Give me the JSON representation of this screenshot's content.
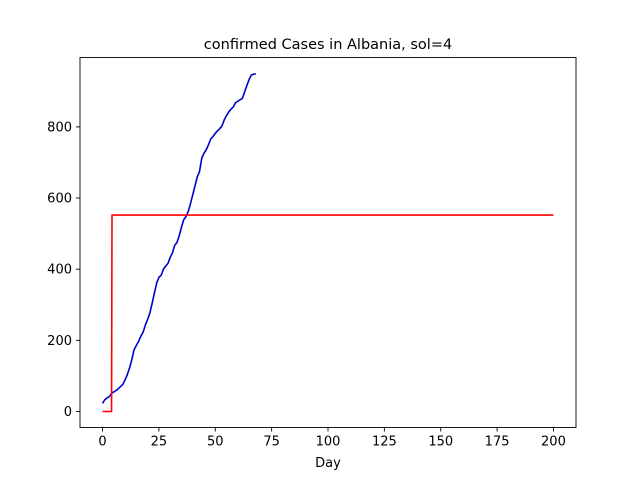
{
  "chart_data": {
    "type": "line",
    "title": "confirmed Cases in Albania, sol=4",
    "xlabel": "Day",
    "ylabel": "",
    "xlim": [
      -10,
      210
    ],
    "ylim": [
      -45,
      995
    ],
    "xticks": [
      0,
      25,
      50,
      75,
      100,
      125,
      150,
      175,
      200
    ],
    "yticks": [
      0,
      200,
      400,
      600,
      800
    ],
    "grid": false,
    "series": [
      {
        "color": "#0000cc",
        "x": [
          0,
          1,
          2,
          3,
          4,
          5,
          6,
          7,
          8,
          9,
          10,
          11,
          12,
          13,
          14,
          15,
          16,
          17,
          18,
          19,
          20,
          21,
          22,
          23,
          24,
          25,
          26,
          27,
          28,
          29,
          30,
          31,
          32,
          33,
          34,
          35,
          36,
          37,
          38,
          39,
          40,
          41,
          42,
          43,
          44,
          45,
          46,
          47,
          48,
          49,
          50,
          51,
          52,
          53,
          54,
          55,
          56,
          57,
          58,
          59,
          60,
          61,
          62,
          63,
          64,
          65,
          66,
          67,
          68
        ],
        "y": [
          23,
          33,
          38,
          42,
          51,
          55,
          59,
          64,
          70,
          76,
          89,
          104,
          123,
          146,
          174,
          186,
          197,
          212,
          223,
          243,
          259,
          277,
          304,
          333,
          361,
          377,
          383,
          400,
          409,
          416,
          433,
          446,
          467,
          475,
          494,
          518,
          539,
          548,
          562,
          584,
          609,
          634,
          659,
          674,
          712,
          726,
          736,
          750,
          766,
          773,
          782,
          789,
          795,
          803,
          820,
          832,
          842,
          850,
          856,
          868,
          872,
          876,
          880,
          898,
          916,
          933,
          946,
          948,
          949
        ]
      },
      {
        "color": "#ff0000",
        "x": [
          0,
          4,
          4.2,
          200
        ],
        "y": [
          0,
          0,
          552,
          552
        ]
      }
    ]
  }
}
